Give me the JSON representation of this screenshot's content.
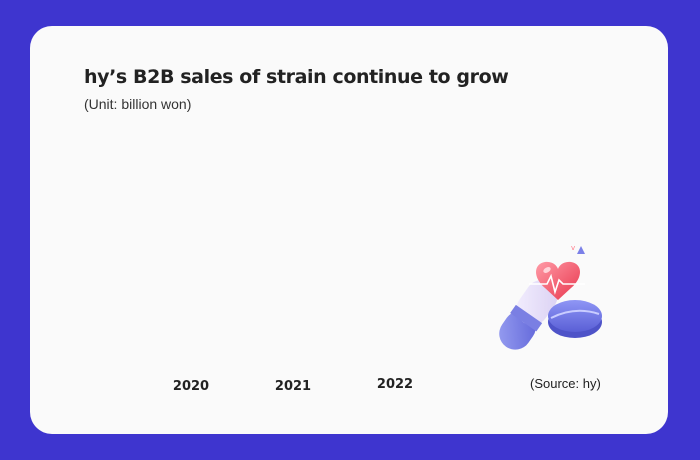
{
  "colors": {
    "background": "#3e35cf",
    "card": "#fafafa",
    "text": "#222222"
  },
  "header": {
    "title": "hy’s B2B sales of strain continue to grow",
    "unit": "(Unit: billion won)"
  },
  "footer": {
    "source": "(Source: hy)"
  },
  "illustration": {
    "icons": [
      "capsule-icon",
      "pill-icon",
      "heart-icon",
      "heartbeat-line-icon"
    ]
  },
  "chart_data": {
    "type": "bar",
    "title": "hy’s B2B sales of strain continue to grow",
    "subtitle": "(Unit: billion won)",
    "categories": [
      "2020",
      "2021",
      "2022"
    ],
    "values": [
      null,
      null,
      null
    ],
    "xlabel": "",
    "ylabel": "",
    "grid": false
  }
}
